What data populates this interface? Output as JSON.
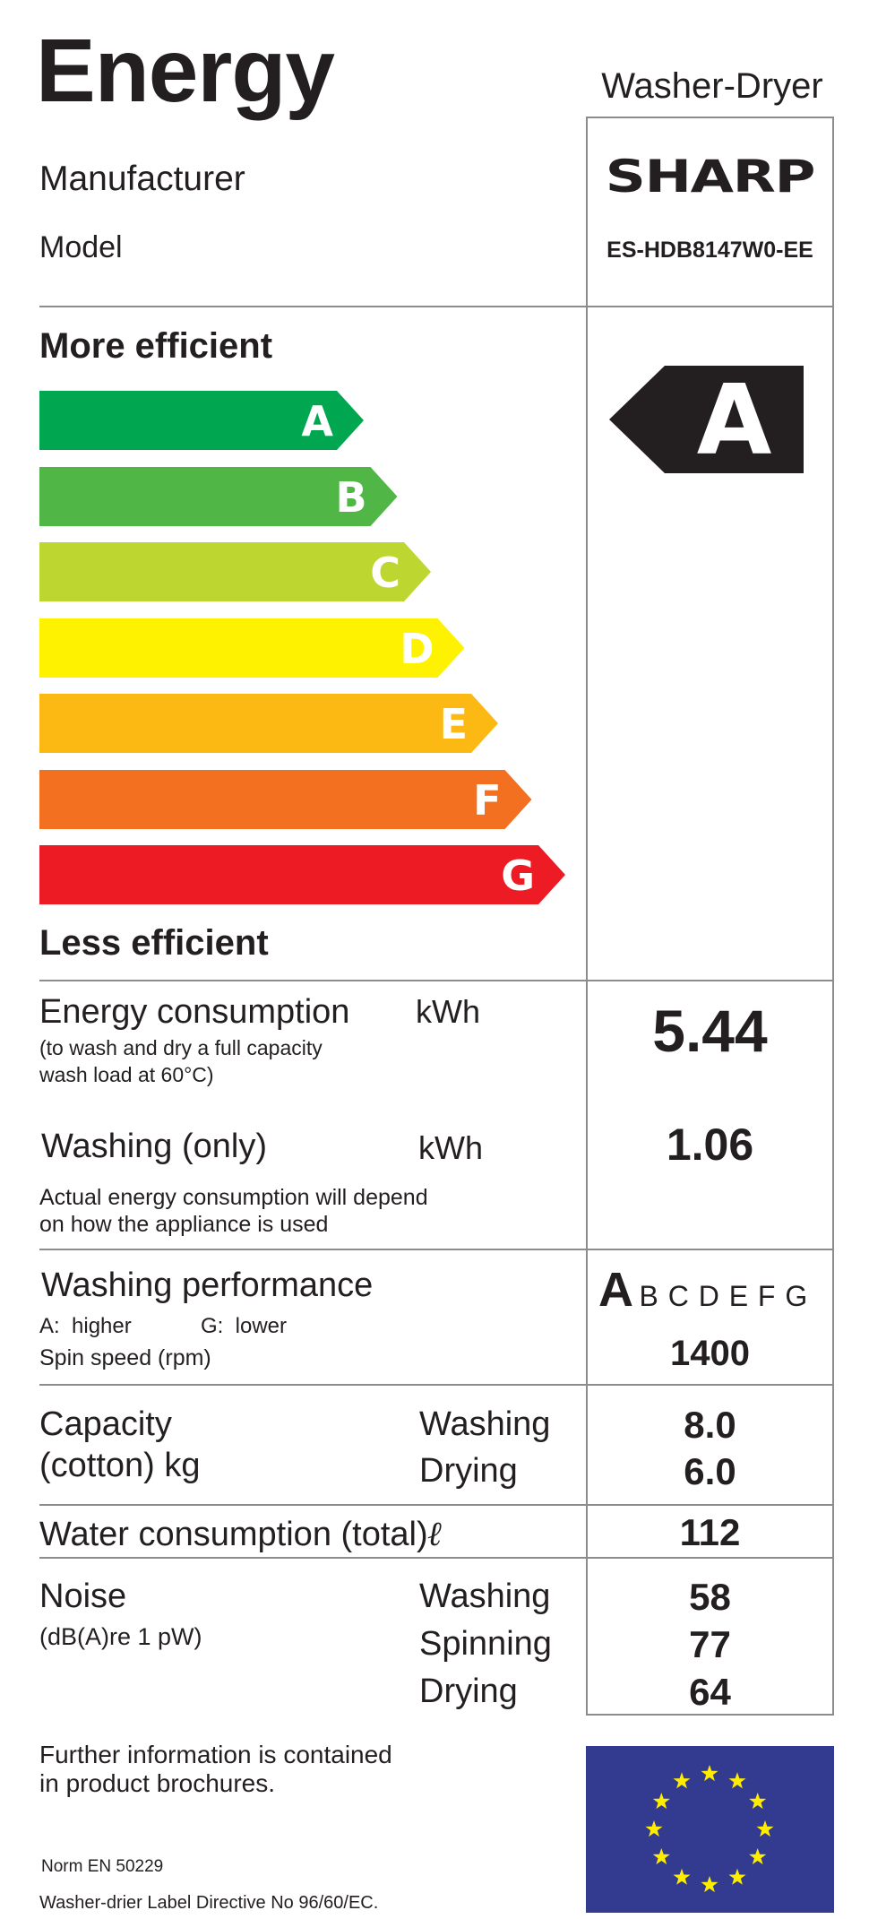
{
  "header": {
    "title": "Energy",
    "appliance_type": "Washer-Dryer"
  },
  "manufacturer": {
    "label": "Manufacturer",
    "logo_text": "SHARP"
  },
  "model": {
    "label": "Model",
    "value": "ES-HDB8147W0-EE"
  },
  "efficiency_scale": {
    "more_label": "More efficient",
    "less_label": "Less efficient",
    "classes": [
      {
        "letter": "A",
        "color": "#00a650"
      },
      {
        "letter": "B",
        "color": "#50b747"
      },
      {
        "letter": "C",
        "color": "#bed630"
      },
      {
        "letter": "D",
        "color": "#fff200"
      },
      {
        "letter": "E",
        "color": "#fdb913"
      },
      {
        "letter": "F",
        "color": "#f37021"
      },
      {
        "letter": "G",
        "color": "#ed1c24"
      }
    ],
    "rating": "A",
    "rating_color": "#231f20"
  },
  "energy_consumption": {
    "label": "Energy consumption",
    "unit": "kWh",
    "note_line1": "(to wash and dry a full capacity",
    "note_line2": "wash load at 60°C)",
    "value": "5.44"
  },
  "washing_only": {
    "label": "Washing (only)",
    "unit": "kWh",
    "value": "1.06",
    "note_line1": "Actual energy consumption will depend",
    "note_line2": "on how the appliance is used"
  },
  "washing_performance": {
    "label": "Washing performance",
    "higher_label": "A:  higher",
    "lower_label": "G:  lower",
    "class": "A",
    "other_classes": "B C D E F G"
  },
  "spin_speed": {
    "label": "Spin speed (rpm)",
    "value": "1400"
  },
  "capacity": {
    "label_line1": "Capacity",
    "label_line2": "(cotton) kg",
    "washing_label": "Washing",
    "washing_value": "8.0",
    "drying_label": "Drying",
    "drying_value": "6.0"
  },
  "water": {
    "label": "Water consumption (total)",
    "unit_symbol": "ℓ",
    "value": "112"
  },
  "noise": {
    "label": "Noise",
    "unit": "(dB(A)re 1 pW)",
    "washing_label": "Washing",
    "washing_value": "58",
    "spinning_label": "Spinning",
    "spinning_value": "77",
    "drying_label": "Drying",
    "drying_value": "64"
  },
  "footer": {
    "info_line1": "Further information is contained",
    "info_line2": "in product brochures.",
    "norm": "Norm EN 50229",
    "directive": "Washer-drier Label Directive No 96/60/EC."
  },
  "eu_flag": {
    "background": "#333b90",
    "star_color": "#ffed00"
  }
}
